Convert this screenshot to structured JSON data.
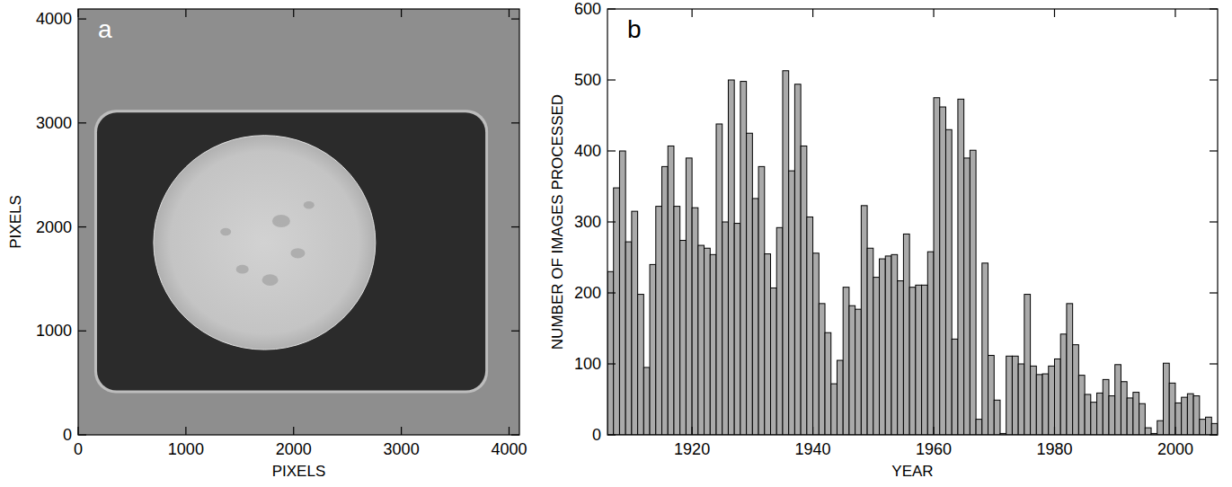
{
  "chart_data": [
    {
      "type": "image",
      "panel_label": "a",
      "x_label": "PIXELS",
      "y_label": "PIXELS",
      "xlim": [
        0,
        4096
      ],
      "ylim": [
        0,
        4096
      ],
      "xticks": [
        0,
        1000,
        2000,
        3000,
        4000
      ],
      "yticks": [
        0,
        1000,
        2000,
        3000,
        4000
      ],
      "plate": {
        "x": [
          175,
          3780
        ],
        "y": [
          427,
          3100
        ]
      },
      "sun_disk": {
        "center": [
          1730,
          1850
        ],
        "radius": 1030
      }
    },
    {
      "type": "histogram",
      "panel_label": "b",
      "x_label": "YEAR",
      "y_label": "NUMBER OF IMAGES PROCESSED",
      "color": "#aaaaaa",
      "bins": [
        1906,
        1907,
        1908,
        1909,
        1910,
        1911,
        1912,
        1913,
        1914,
        1915,
        1916,
        1917,
        1918,
        1919,
        1920,
        1921,
        1922,
        1923,
        1924,
        1925,
        1926,
        1927,
        1928,
        1929,
        1930,
        1931,
        1932,
        1933,
        1934,
        1935,
        1936,
        1937,
        1938,
        1939,
        1940,
        1941,
        1942,
        1943,
        1944,
        1945,
        1946,
        1947,
        1948,
        1949,
        1950,
        1951,
        1952,
        1953,
        1954,
        1955,
        1956,
        1957,
        1958,
        1959,
        1960,
        1961,
        1962,
        1963,
        1964,
        1965,
        1966,
        1967,
        1968,
        1969,
        1970,
        1971,
        1972,
        1973,
        1974,
        1975,
        1976,
        1977,
        1978,
        1979,
        1980,
        1981,
        1982,
        1983,
        1984,
        1985,
        1986,
        1987,
        1988,
        1989,
        1990,
        1991,
        1992,
        1993,
        1994,
        1995,
        1996,
        1997,
        1998,
        1999,
        2000,
        2001,
        2002,
        2003,
        2004,
        2005,
        2006,
        2007
      ],
      "values": [
        230,
        348,
        400,
        272,
        315,
        198,
        95,
        240,
        322,
        378,
        407,
        322,
        274,
        390,
        320,
        267,
        263,
        254,
        438,
        300,
        500,
        298,
        498,
        425,
        333,
        378,
        255,
        207,
        292,
        513,
        372,
        494,
        407,
        307,
        256,
        185,
        144,
        72,
        105,
        208,
        182,
        177,
        323,
        263,
        222,
        248,
        252,
        254,
        217,
        283,
        208,
        211,
        211,
        258,
        475,
        462,
        430,
        135,
        473,
        390,
        401,
        22,
        242,
        112,
        49,
        2,
        111,
        111,
        100,
        198,
        97,
        85,
        86,
        97,
        107,
        142,
        185,
        127,
        84,
        57,
        46,
        59,
        78,
        55,
        99,
        75,
        52,
        60,
        44,
        10,
        2,
        20,
        101,
        73,
        45,
        53,
        58,
        55,
        22,
        25,
        16
      ],
      "xlim": [
        1906,
        2007
      ],
      "ylim": [
        0,
        600
      ],
      "xticks": [
        1920,
        1940,
        1960,
        1980,
        2000
      ],
      "yticks": [
        0,
        100,
        200,
        300,
        400,
        500,
        600
      ]
    }
  ]
}
